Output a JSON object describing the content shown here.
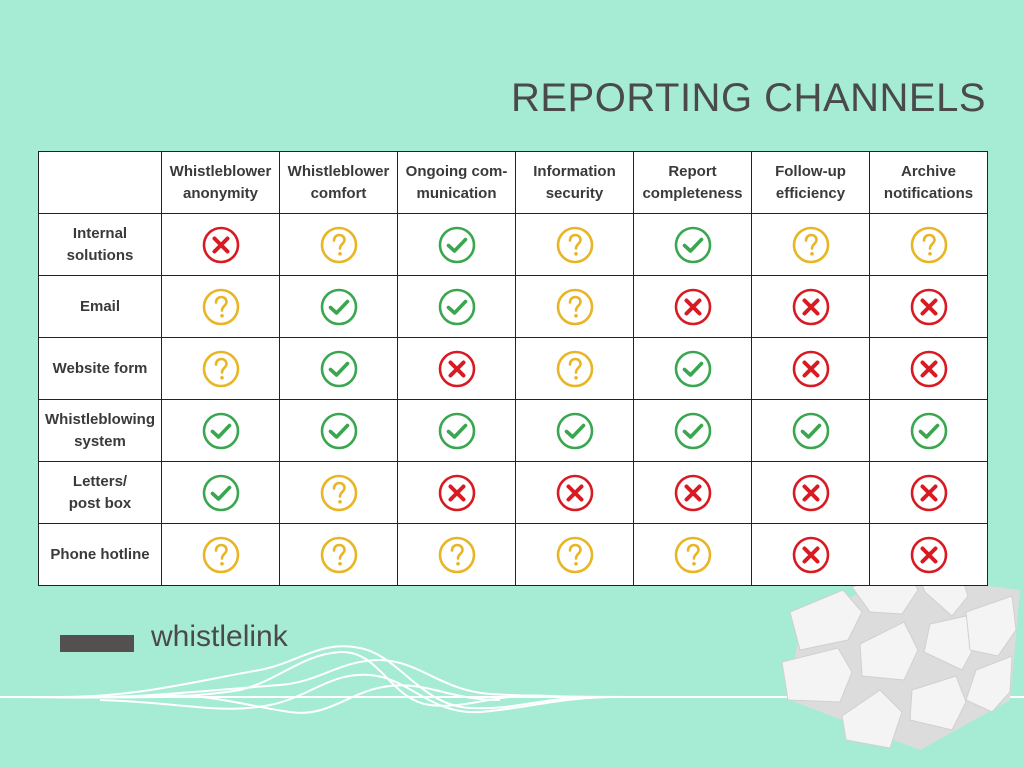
{
  "title": "REPORTING CHANNELS",
  "logo": {
    "text": "whistlelink"
  },
  "colors": {
    "check": "#3aa650",
    "question": "#e8b524",
    "cross": "#d81b23"
  },
  "columns": [
    {
      "line1": "Whistleblower",
      "line2": "anonymity"
    },
    {
      "line1": "Whistleblower",
      "line2": "comfort"
    },
    {
      "line1": "Ongoing com-",
      "line2": "munication"
    },
    {
      "line1": "Information",
      "line2": "security"
    },
    {
      "line1": "Report",
      "line2": "completeness"
    },
    {
      "line1": "Follow-up",
      "line2": "efficiency"
    },
    {
      "line1": "Archive",
      "line2": "notifications"
    }
  ],
  "rows": [
    {
      "line1": "Internal",
      "line2": "solutions",
      "cells": [
        "cross",
        "question",
        "check",
        "question",
        "check",
        "question",
        "question"
      ]
    },
    {
      "line1": "Email",
      "line2": "",
      "cells": [
        "question",
        "check",
        "check",
        "question",
        "cross",
        "cross",
        "cross"
      ]
    },
    {
      "line1": "Website form",
      "line2": "",
      "cells": [
        "question",
        "check",
        "cross",
        "question",
        "check",
        "cross",
        "cross"
      ]
    },
    {
      "line1": "Whistleblowing",
      "line2": "system",
      "cells": [
        "check",
        "check",
        "check",
        "check",
        "check",
        "check",
        "check"
      ]
    },
    {
      "line1": "Letters/",
      "line2": "post box",
      "cells": [
        "check",
        "question",
        "cross",
        "cross",
        "cross",
        "cross",
        "cross"
      ]
    },
    {
      "line1": "Phone hotline",
      "line2": "",
      "cells": [
        "question",
        "question",
        "question",
        "question",
        "question",
        "cross",
        "cross"
      ]
    }
  ]
}
